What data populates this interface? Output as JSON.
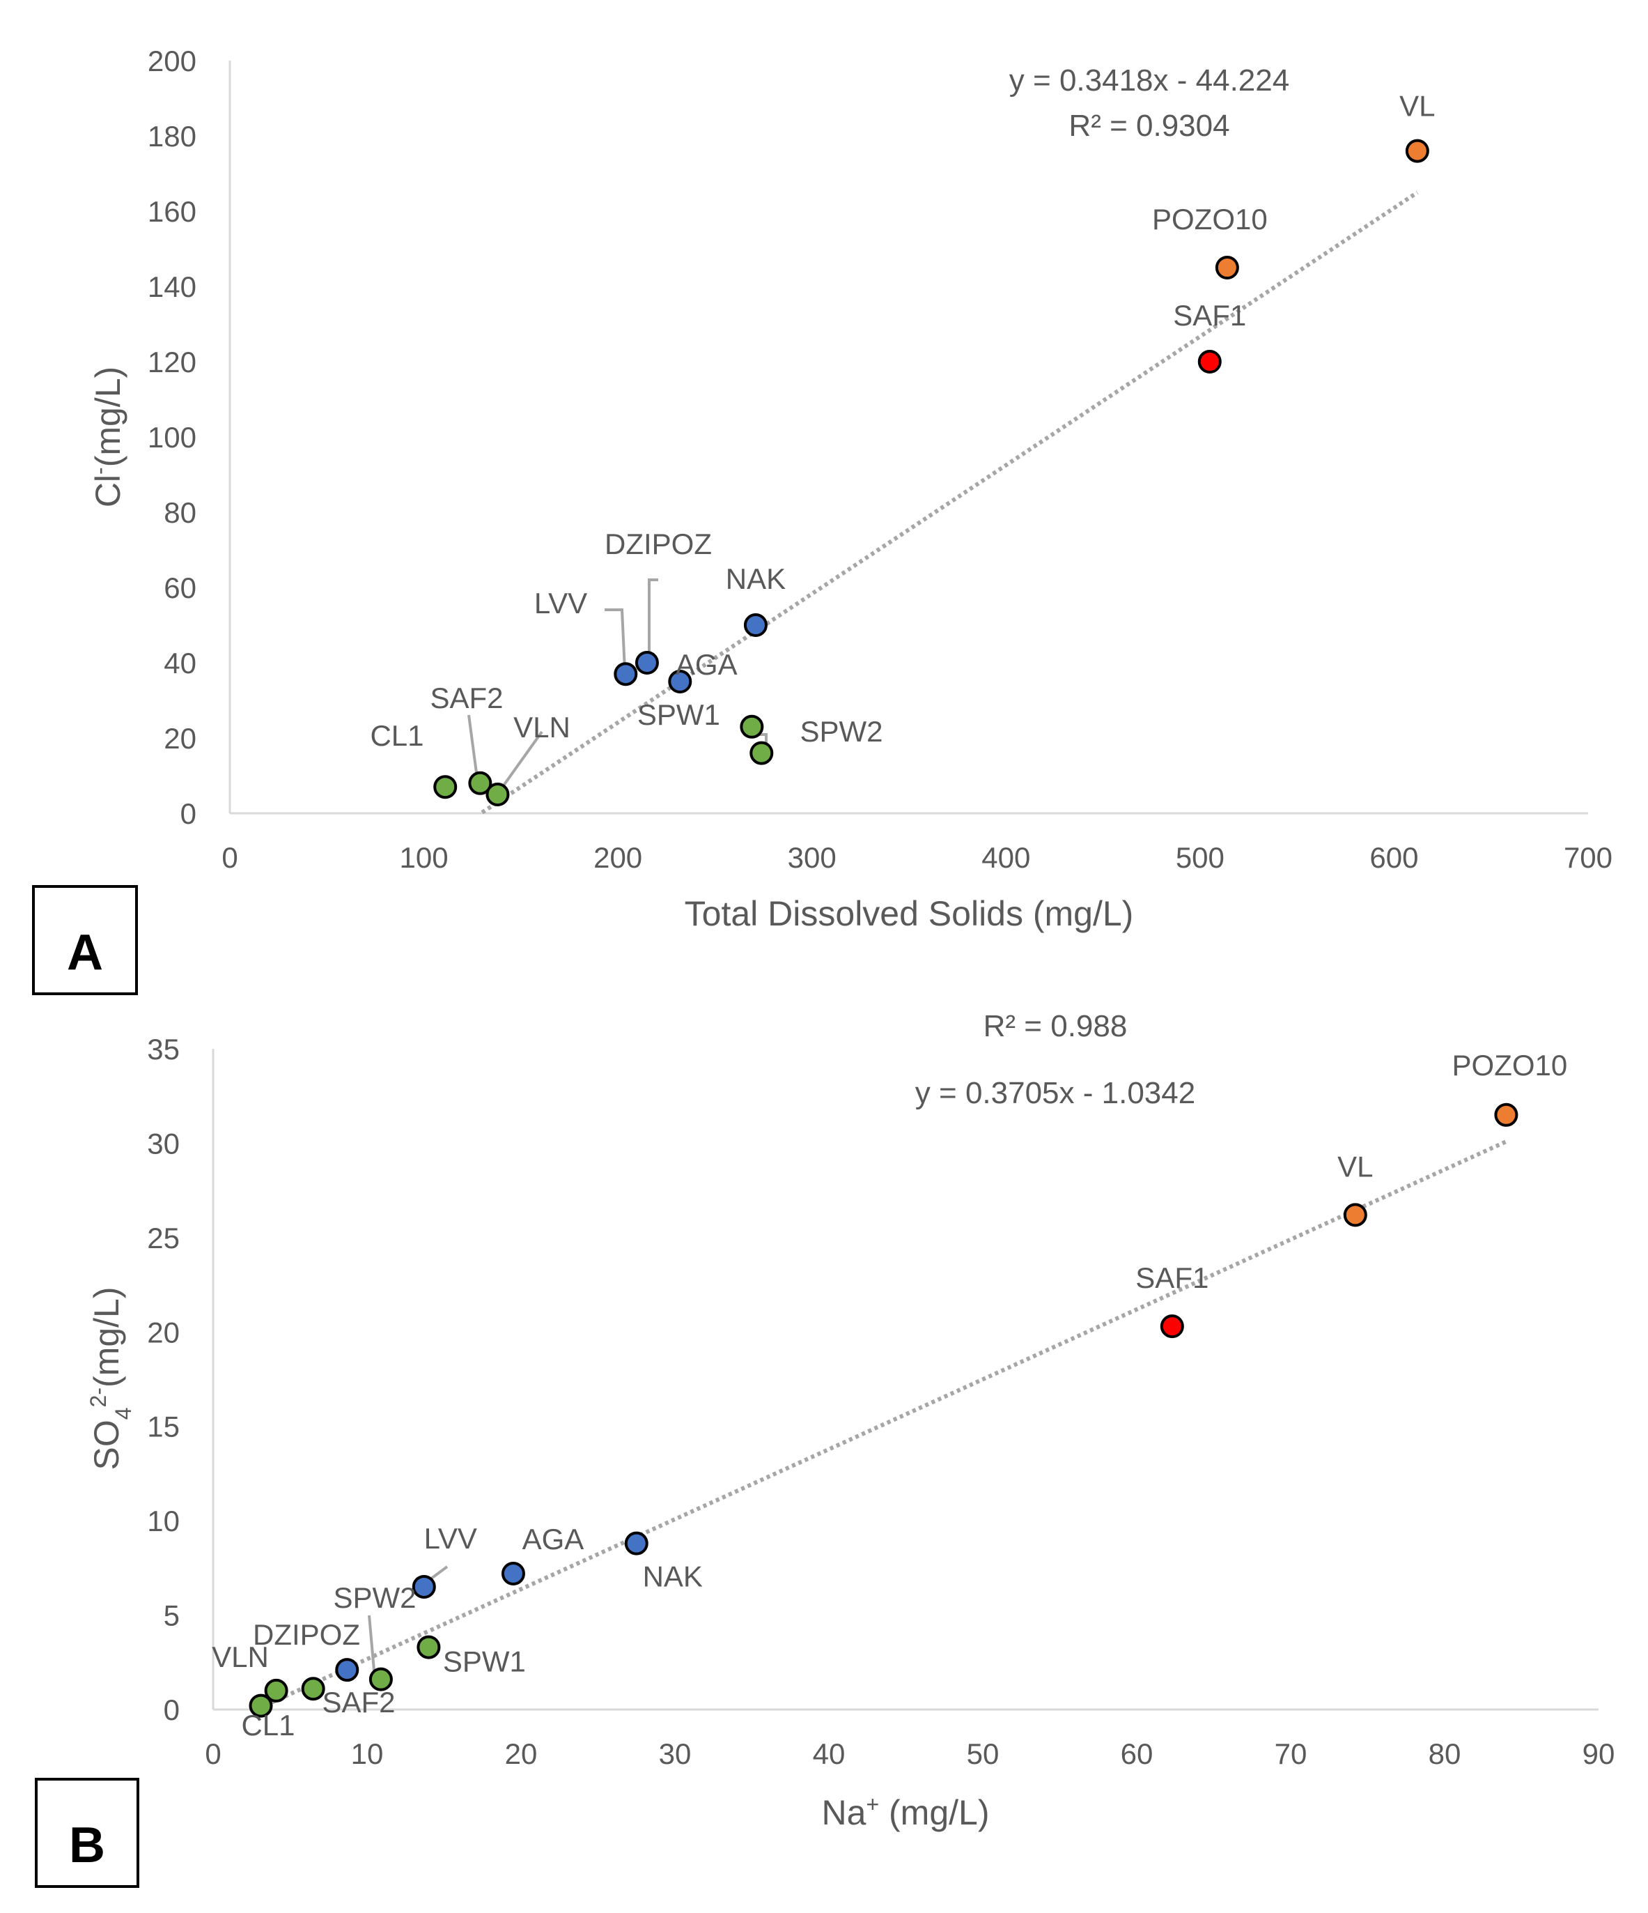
{
  "colors": {
    "blue": "#4472C4",
    "green": "#70AD47",
    "orange": "#ED7D31",
    "red": "#FF0000",
    "axis": "#D9D9D9",
    "text": "#595959",
    "trend": "#A6A6A6",
    "marker_edge": "#000000"
  },
  "panels": {
    "A": {
      "label": "A"
    },
    "B": {
      "label": "B"
    }
  },
  "chart_data": [
    {
      "id": "A",
      "type": "scatter",
      "title": "",
      "panel_label": "A",
      "xlabel": "Total Dissolved Solids (mg/L)",
      "ylabel": "Cl",
      "ylabel_sup": "-",
      "ylabel_suffix": "(mg/L)",
      "xlim": [
        0,
        700
      ],
      "ylim": [
        0,
        200
      ],
      "xticks": [
        0,
        100,
        200,
        300,
        400,
        500,
        600,
        700
      ],
      "yticks": [
        0,
        20,
        40,
        60,
        80,
        100,
        120,
        140,
        160,
        180,
        200
      ],
      "grid": false,
      "trendline": {
        "slope": 0.3418,
        "intercept": -44.224,
        "x_range": [
          130,
          612
        ],
        "style": "dotted"
      },
      "equation_lines": [
        "y = 0.3418x - 44.224",
        "R² = 0.9304"
      ],
      "points": [
        {
          "name": "VL",
          "x": 612,
          "y": 176,
          "color": "orange",
          "label": "VL"
        },
        {
          "name": "POZO10",
          "x": 514,
          "y": 145,
          "color": "orange",
          "label": "POZO10"
        },
        {
          "name": "SAF1",
          "x": 505,
          "y": 120,
          "color": "red",
          "label": "SAF1"
        },
        {
          "name": "NAK",
          "x": 271,
          "y": 50,
          "color": "blue",
          "label": "NAK"
        },
        {
          "name": "DZIPOZ",
          "x": 215,
          "y": 40,
          "color": "blue",
          "label": "DZIPOZ"
        },
        {
          "name": "LVV",
          "x": 204,
          "y": 37,
          "color": "blue",
          "label": "LVV"
        },
        {
          "name": "AGA",
          "x": 232,
          "y": 35,
          "color": "blue",
          "label": "AGA"
        },
        {
          "name": "SPW1",
          "x": 269,
          "y": 23,
          "color": "green",
          "label": "SPW1"
        },
        {
          "name": "SPW2",
          "x": 274,
          "y": 16,
          "color": "green",
          "label": "SPW2"
        },
        {
          "name": "CL1",
          "x": 111,
          "y": 7,
          "color": "green",
          "label": "CL1"
        },
        {
          "name": "SAF2",
          "x": 129,
          "y": 8,
          "color": "green",
          "label": "SAF2"
        },
        {
          "name": "VLN",
          "x": 138,
          "y": 5,
          "color": "green",
          "label": "VLN"
        }
      ]
    },
    {
      "id": "B",
      "type": "scatter",
      "title": "",
      "panel_label": "B",
      "xlabel": "Na",
      "xlabel_sup": "+",
      "xlabel_suffix": " (mg/L)",
      "ylabel": "SO",
      "ylabel_sub": "4",
      "ylabel_sup": "2-",
      "ylabel_suffix": "(mg/L)",
      "xlim": [
        0,
        90
      ],
      "ylim": [
        0,
        35
      ],
      "xticks": [
        0,
        10,
        20,
        30,
        40,
        50,
        60,
        70,
        80,
        90
      ],
      "yticks": [
        0,
        5,
        10,
        15,
        20,
        25,
        30,
        35
      ],
      "grid": false,
      "trendline": {
        "slope": 0.3705,
        "intercept": -1.0342,
        "x_range": [
          3,
          84
        ],
        "style": "dotted"
      },
      "equation_lines": [
        "R² = 0.988",
        "y = 0.3705x - 1.0342"
      ],
      "points": [
        {
          "name": "POZO10",
          "x": 84,
          "y": 31.5,
          "color": "orange",
          "label": "POZO10"
        },
        {
          "name": "VL",
          "x": 74.2,
          "y": 26.2,
          "color": "orange",
          "label": "VL"
        },
        {
          "name": "SAF1",
          "x": 62.3,
          "y": 20.3,
          "color": "red",
          "label": "SAF1"
        },
        {
          "name": "NAK",
          "x": 27.5,
          "y": 8.8,
          "color": "blue",
          "label": "NAK"
        },
        {
          "name": "AGA",
          "x": 19.5,
          "y": 7.2,
          "color": "blue",
          "label": "AGA"
        },
        {
          "name": "LVV",
          "x": 13.7,
          "y": 6.5,
          "color": "blue",
          "label": "LVV"
        },
        {
          "name": "SPW1",
          "x": 14,
          "y": 3.3,
          "color": "green",
          "label": "SPW1"
        },
        {
          "name": "SPW2",
          "x": 10.9,
          "y": 1.6,
          "color": "green",
          "label": "SPW2"
        },
        {
          "name": "DZIPOZ",
          "x": 8.7,
          "y": 2.1,
          "color": "blue",
          "label": "DZIPOZ"
        },
        {
          "name": "SAF2",
          "x": 6.5,
          "y": 1.1,
          "color": "green",
          "label": "SAF2"
        },
        {
          "name": "VLN",
          "x": 4.1,
          "y": 1.0,
          "color": "green",
          "label": "VLN"
        },
        {
          "name": "CL1",
          "x": 3.1,
          "y": 0.2,
          "color": "green",
          "label": "CL1"
        }
      ]
    }
  ]
}
